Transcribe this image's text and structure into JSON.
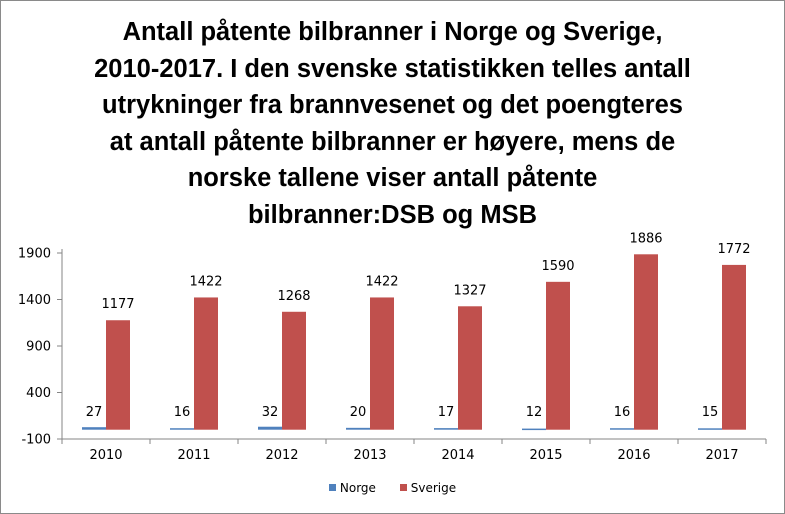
{
  "chart_data": {
    "type": "bar",
    "title_lines": [
      "Antall påtente bilbranner i Norge og Sverige,",
      "2010-2017.  I den svenske statistikken telles antall",
      "utrykninger fra brannvesenet og det poengteres",
      "at antall påtente bilbranner er høyere, mens de",
      "norske tallene viser antall påtente",
      "bilbranner:DSB og MSB"
    ],
    "categories": [
      "2010",
      "2011",
      "2012",
      "2013",
      "2014",
      "2015",
      "2016",
      "2017"
    ],
    "series": [
      {
        "name": "Norge",
        "color": "#4f81bd",
        "values": [
          27,
          16,
          32,
          20,
          17,
          12,
          16,
          15
        ]
      },
      {
        "name": "Sverige",
        "color": "#c0504d",
        "values": [
          1177,
          1422,
          1268,
          1422,
          1327,
          1590,
          1886,
          1772
        ]
      }
    ],
    "y_ticks": [
      "1900",
      "1400",
      "900",
      "400",
      "-100"
    ],
    "ylim": [
      -100,
      1900
    ],
    "xlabel": "",
    "ylabel": "",
    "grid": false,
    "legend_position": "bottom"
  }
}
